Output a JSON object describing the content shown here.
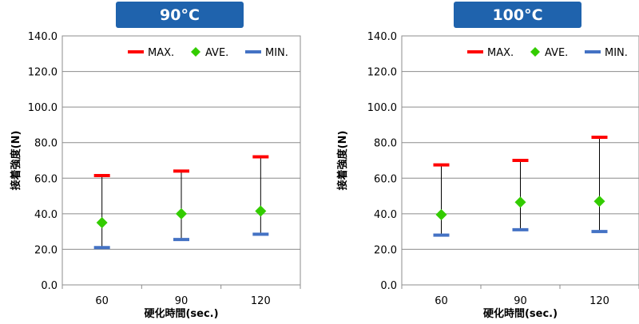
{
  "colors": {
    "max": "#ff0000",
    "ave": "#33cc00",
    "min": "#4472c4",
    "title_bg": "#1f63ad"
  },
  "legend": {
    "max": "MAX.",
    "ave": "AVE.",
    "min": "MIN."
  },
  "chart_data": [
    {
      "type": "errorbar",
      "title": "90°C",
      "xlabel": "硬化時間(sec.)",
      "ylabel": "接着強度(N)",
      "ylim": [
        0,
        140
      ],
      "yticks": [
        "0.0",
        "20.0",
        "40.0",
        "60.0",
        "80.0",
        "100.0",
        "120.0",
        "140.0"
      ],
      "categories": [
        "60",
        "90",
        "120"
      ],
      "series": [
        {
          "name": "MAX.",
          "values": [
            61.5,
            64,
            72
          ]
        },
        {
          "name": "AVE.",
          "values": [
            35,
            40,
            41.5
          ]
        },
        {
          "name": "MIN.",
          "values": [
            21,
            25.5,
            28.5
          ]
        }
      ],
      "grid": true,
      "legend_position": "top-right"
    },
    {
      "type": "errorbar",
      "title": "100°C",
      "xlabel": "硬化時間(sec.)",
      "ylabel": "接着強度(N)",
      "ylim": [
        0,
        140
      ],
      "yticks": [
        "0.0",
        "20.0",
        "40.0",
        "60.0",
        "80.0",
        "100.0",
        "120.0",
        "140.0"
      ],
      "categories": [
        "60",
        "90",
        "120"
      ],
      "series": [
        {
          "name": "MAX.",
          "values": [
            67.5,
            70,
            83
          ]
        },
        {
          "name": "AVE.",
          "values": [
            39.5,
            46.5,
            47
          ]
        },
        {
          "name": "MIN.",
          "values": [
            28,
            31,
            30
          ]
        }
      ],
      "grid": true,
      "legend_position": "top-right"
    }
  ]
}
